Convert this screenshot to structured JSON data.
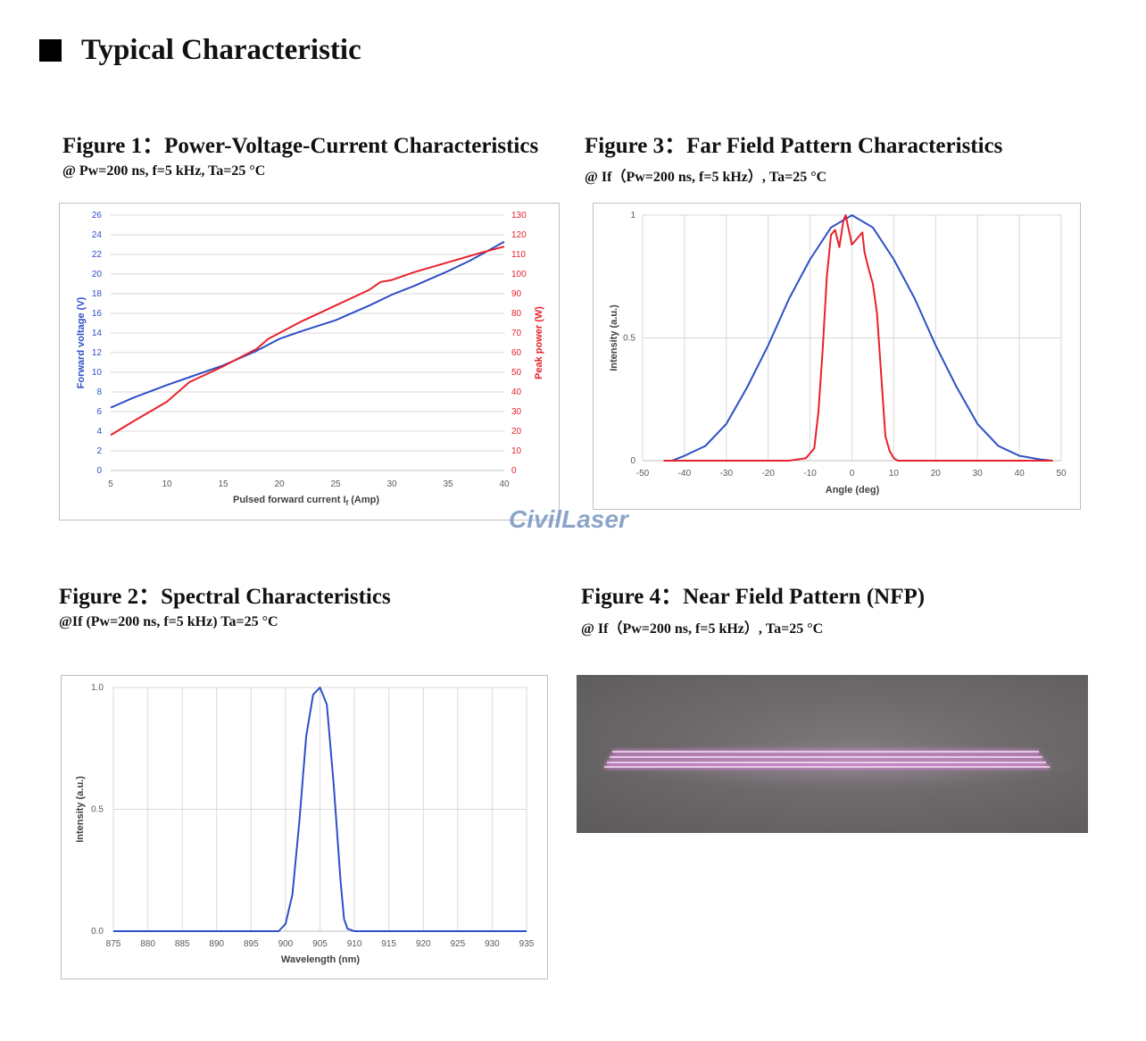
{
  "section": {
    "title": "Typical Characteristic"
  },
  "figure1": {
    "title": "Figure 1：Power-Voltage-Current Characteristics",
    "subtitle": "@ Pw=200 ns, f=5 kHz, Ta=25 °C"
  },
  "figure2": {
    "title": "Figure 2：Spectral Characteristics",
    "subtitle": "@If (Pw=200 ns, f=5 kHz) Ta=25 °C"
  },
  "figure3": {
    "title": "Figure 3：Far Field Pattern Characteristics",
    "subtitle": "@ If（Pw=200 ns, f=5 kHz）, Ta=25 °C"
  },
  "figure4": {
    "title": "Figure 4：Near Field Pattern (NFP)",
    "subtitle": "@ If（Pw=200 ns, f=5 kHz）, Ta=25 °C"
  },
  "watermark": "CivilLaser",
  "colors": {
    "blue": "#2e4fc7",
    "red": "#e8212b",
    "grid": "#d9d9d9",
    "nfp_line": "#f4d8f4"
  },
  "chart_data": [
    {
      "id": "pvi",
      "type": "line",
      "xlabel_main": "Pulsed forward current I",
      "xlabel_sub": "f",
      "xlabel_unit": " (Amp)",
      "ylabel": "Forward voltage (V)",
      "y2label": "Peak power (W)",
      "xlim": [
        5,
        40
      ],
      "ylim": [
        0,
        26
      ],
      "y2lim": [
        0,
        130
      ],
      "x_ticks": [
        5,
        10,
        15,
        20,
        25,
        30,
        35,
        40
      ],
      "y_ticks": [
        0,
        2,
        4,
        6,
        8,
        10,
        12,
        14,
        16,
        18,
        20,
        22,
        24,
        26
      ],
      "y2_ticks": [
        0,
        10,
        20,
        30,
        40,
        50,
        60,
        70,
        80,
        90,
        100,
        110,
        120,
        130
      ],
      "grid": true,
      "series": [
        {
          "axis": "left",
          "color": "#2e4fc7",
          "x": [
            5,
            7,
            10,
            12,
            15,
            18,
            20,
            22,
            25,
            28,
            30,
            32,
            35,
            37,
            40
          ],
          "values": [
            6.4,
            7.4,
            8.7,
            9.5,
            10.7,
            12.2,
            13.4,
            14.2,
            15.3,
            16.8,
            17.9,
            18.8,
            20.3,
            21.4,
            23.3
          ]
        },
        {
          "axis": "right",
          "color": "#e8212b",
          "x": [
            5,
            7,
            10,
            11,
            12,
            15,
            18,
            19,
            20,
            22,
            25,
            28,
            29,
            30,
            32,
            35,
            38,
            40
          ],
          "values": [
            18,
            25,
            35,
            40,
            45,
            53,
            62,
            67,
            70,
            76,
            84,
            92,
            96,
            97,
            101,
            106,
            111,
            114
          ]
        }
      ]
    },
    {
      "id": "spectrum",
      "type": "line",
      "xlabel": "Wavelength (nm)",
      "ylabel": "Intensity (a.u.)",
      "xlim": [
        875,
        935
      ],
      "ylim": [
        0,
        1
      ],
      "x_ticks": [
        875,
        880,
        885,
        890,
        895,
        900,
        905,
        910,
        915,
        920,
        925,
        930,
        935
      ],
      "y_ticks": [
        "0.0",
        "0.5",
        "1.0"
      ],
      "grid": true,
      "series": [
        {
          "color": "#2e4fc7",
          "x": [
            875,
            880,
            885,
            890,
            895,
            899,
            900,
            901,
            902,
            903,
            904,
            905,
            906,
            907,
            908,
            908.5,
            909,
            910,
            915,
            920,
            925,
            930,
            935
          ],
          "values": [
            0.0,
            0.0,
            0.0,
            0.0,
            0.0,
            0.0,
            0.03,
            0.15,
            0.45,
            0.8,
            0.97,
            1.0,
            0.93,
            0.6,
            0.2,
            0.05,
            0.01,
            0.0,
            0.0,
            0.0,
            0.0,
            0.0,
            0.0
          ]
        }
      ]
    },
    {
      "id": "farfield",
      "type": "line",
      "xlabel": "Angle (deg)",
      "ylabel": "Intensity (a.u.)",
      "xlim": [
        -50,
        50
      ],
      "ylim": [
        0,
        1
      ],
      "x_ticks": [
        -50,
        -40,
        -30,
        -20,
        -10,
        0,
        10,
        20,
        30,
        40,
        50
      ],
      "y_ticks": [
        "0",
        "0.5",
        "1"
      ],
      "grid": true,
      "series": [
        {
          "color": "#2e4fc7",
          "x": [
            -43,
            -40,
            -35,
            -30,
            -25,
            -20,
            -15,
            -10,
            -5,
            0,
            5,
            10,
            15,
            20,
            25,
            30,
            35,
            40,
            45,
            48
          ],
          "values": [
            0.0,
            0.02,
            0.06,
            0.15,
            0.3,
            0.47,
            0.66,
            0.82,
            0.95,
            1.0,
            0.95,
            0.82,
            0.66,
            0.47,
            0.3,
            0.15,
            0.06,
            0.02,
            0.005,
            0.0
          ]
        },
        {
          "color": "#e8212b",
          "x": [
            -45,
            -30,
            -15,
            -11,
            -9,
            -8,
            -7,
            -6,
            -5,
            -4,
            -3,
            -2,
            -1.5,
            -1,
            0,
            1,
            2,
            2.5,
            3,
            4,
            5,
            6,
            7,
            8,
            9,
            10,
            11,
            15,
            30,
            48
          ],
          "values": [
            0.0,
            0.0,
            0.0,
            0.01,
            0.05,
            0.2,
            0.45,
            0.75,
            0.92,
            0.94,
            0.87,
            0.98,
            1.0,
            0.96,
            0.88,
            0.9,
            0.92,
            0.93,
            0.85,
            0.78,
            0.72,
            0.6,
            0.35,
            0.1,
            0.04,
            0.01,
            0.0,
            0.0,
            0.0,
            0.0
          ]
        }
      ]
    }
  ]
}
